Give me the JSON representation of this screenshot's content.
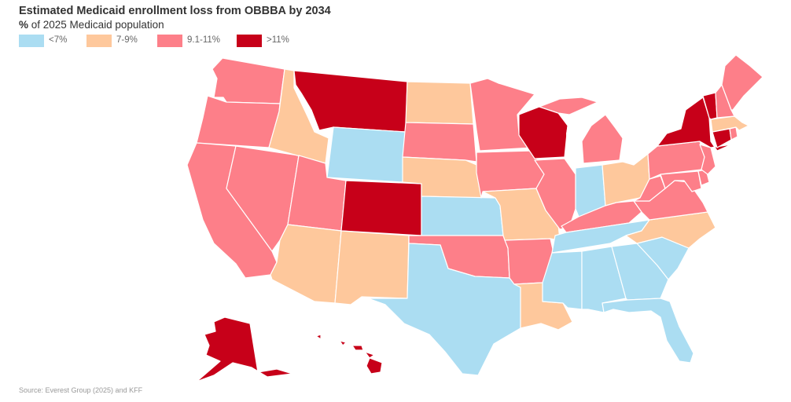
{
  "title": "Estimated Medicaid enrollment loss from OBBBA by 2034",
  "subtitle_prefix": "%",
  "subtitle_rest": " of 2025 Medicaid population",
  "legend": [
    {
      "key": "low",
      "label": "<7%",
      "color": "#abddf2"
    },
    {
      "key": "mid",
      "label": "7-9%",
      "color": "#fec89c"
    },
    {
      "key": "high",
      "label": "9.1-11%",
      "color": "#fd7f89"
    },
    {
      "key": "top",
      "label": ">11%",
      "color": "#c70019"
    }
  ],
  "states": {
    "WA": "high",
    "OR": "high",
    "CA": "high",
    "NV": "high",
    "ID": "mid",
    "MT": "top",
    "WY": "low",
    "UT": "high",
    "CO": "top",
    "AZ": "mid",
    "NM": "mid",
    "ND": "mid",
    "SD": "high",
    "NE": "mid",
    "KS": "low",
    "OK": "high",
    "TX": "low",
    "MN": "high",
    "IA": "high",
    "MO": "mid",
    "AR": "high",
    "LA": "mid",
    "WI": "top",
    "IL": "high",
    "MI": "high",
    "IN": "low",
    "OH": "mid",
    "KY": "high",
    "TN": "low",
    "MS": "low",
    "AL": "low",
    "GA": "low",
    "FL": "low",
    "SC": "low",
    "NC": "mid",
    "VA": "high",
    "WV": "high",
    "MD": "high",
    "DE": "high",
    "PA": "high",
    "NJ": "high",
    "NY": "top",
    "CT": "top",
    "RI": "high",
    "MA": "mid",
    "VT": "top",
    "NH": "high",
    "ME": "high",
    "AK": "top",
    "HI": "top"
  },
  "source": "Source: Everest Group (2025) and KFF"
}
